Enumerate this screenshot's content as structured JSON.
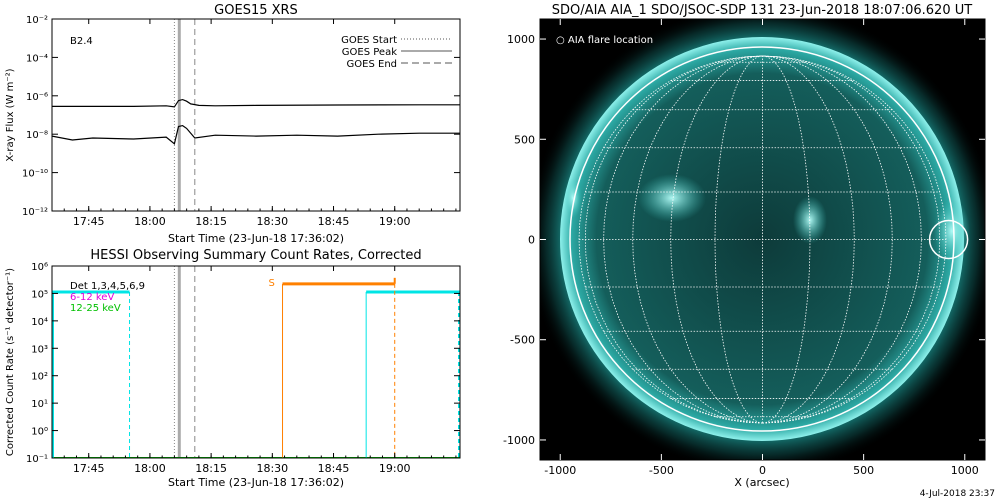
{
  "footer": {
    "timestamp": "4-Jul-2018 23:37"
  },
  "chart_data": [
    {
      "type": "line",
      "title": "GOES15 XRS",
      "xlabel": "Start Time (23-Jun-18 17:36:02)",
      "ylabel": "X-ray Flux (W m⁻²)",
      "yscale": "log",
      "xticks": [
        "17:45",
        "18:00",
        "18:15",
        "18:30",
        "18:45",
        "19:00"
      ],
      "xtick_minutes": [
        9,
        24,
        39,
        54,
        69,
        84
      ],
      "xlim_minutes": [
        0,
        100
      ],
      "yticks": [
        "10⁻²",
        "10⁻⁴",
        "10⁻⁶",
        "10⁻⁸",
        "10⁻¹⁰",
        "10⁻¹²"
      ],
      "ylim_exp": [
        -12,
        -2
      ],
      "annotation": "B2.4",
      "legend_position": "top-right",
      "legend": [
        "GOES Start",
        "GOES Peak",
        "GOES End"
      ],
      "vertical_markers": {
        "start": 30,
        "peak": 31.2,
        "end": 35
      },
      "series": [
        {
          "color": "#000000",
          "x": [
            0,
            20,
            28,
            30,
            31,
            32,
            33,
            34,
            36,
            40,
            50,
            70,
            90,
            100
          ],
          "log_flux": [
            -6.55,
            -6.55,
            -6.52,
            -6.58,
            -6.25,
            -6.2,
            -6.28,
            -6.42,
            -6.5,
            -6.52,
            -6.5,
            -6.48,
            -6.47,
            -6.47
          ]
        },
        {
          "color": "#000000",
          "x": [
            0,
            5,
            10,
            20,
            28,
            30,
            31,
            32,
            33,
            35,
            40,
            50,
            60,
            70,
            80,
            90,
            100
          ],
          "log_flux": [
            -8.1,
            -8.3,
            -8.2,
            -8.25,
            -8.15,
            -8.5,
            -7.6,
            -7.55,
            -7.7,
            -8.2,
            -8.05,
            -8.1,
            -8.05,
            -8.1,
            -8.0,
            -7.95,
            -7.95
          ]
        }
      ]
    },
    {
      "type": "line",
      "title": "HESSI Observing Summary Count Rates, Corrected",
      "xlabel": "Start Time (23-Jun-18 17:36:02)",
      "ylabel": "Corrected Count Rate (s⁻¹ detector⁻¹)",
      "yscale": "log",
      "xticks": [
        "17:45",
        "18:00",
        "18:15",
        "18:30",
        "18:45",
        "19:00"
      ],
      "xtick_minutes": [
        9,
        24,
        39,
        54,
        69,
        84
      ],
      "xlim_minutes": [
        0,
        100
      ],
      "yticks": [
        "10⁶",
        "10⁵",
        "10⁴",
        "10³",
        "10²",
        "10¹",
        "10⁰",
        "10⁻¹"
      ],
      "ylim_exp": [
        -1,
        6
      ],
      "legend": [
        {
          "label": "Det 1,3,4,5,6,9",
          "color": "#000000"
        },
        {
          "label": "6-12 keV",
          "color": "#e000e0"
        },
        {
          "label": "12-25 keV",
          "color": "#00c000"
        }
      ],
      "annotation": "S",
      "vertical_markers": {
        "start": 30,
        "peak": 31.2,
        "end": 35
      },
      "series": [
        {
          "color": "#00e5e5",
          "segments": [
            {
              "x0": 0,
              "x1": 19,
              "log_rate": 5.05
            },
            {
              "x0": 77,
              "x1": 100,
              "log_rate": 5.05
            }
          ]
        },
        {
          "color": "#ff8000",
          "segments": [
            {
              "x0": 56.5,
              "x1": 84,
              "log_rate": 5.35
            }
          ]
        },
        {
          "color": "#00c000",
          "segments": [
            {
              "x0": 0,
              "x1": 100,
              "log_rate": -1
            }
          ]
        }
      ]
    },
    {
      "type": "image",
      "title": "SDO/AIA AIA_1 SDO/JSOC-SDP 131 23-Jun-2018 18:07:06.620 UT",
      "xlabel": "X (arcsec)",
      "ylabel": "",
      "xlim": [
        -1100,
        1100
      ],
      "ylim": [
        -1100,
        1100
      ],
      "xticks": [
        -1000,
        -500,
        0,
        500,
        1000
      ],
      "yticks": [
        1000,
        500,
        0,
        -500,
        -1000
      ],
      "solar_radius_arcsec": 945,
      "flare_location_arcsec": [
        920,
        0
      ],
      "legend": "○ AIA flare location",
      "background": "#000000",
      "disk_color": "#007b78",
      "grid": true
    }
  ]
}
